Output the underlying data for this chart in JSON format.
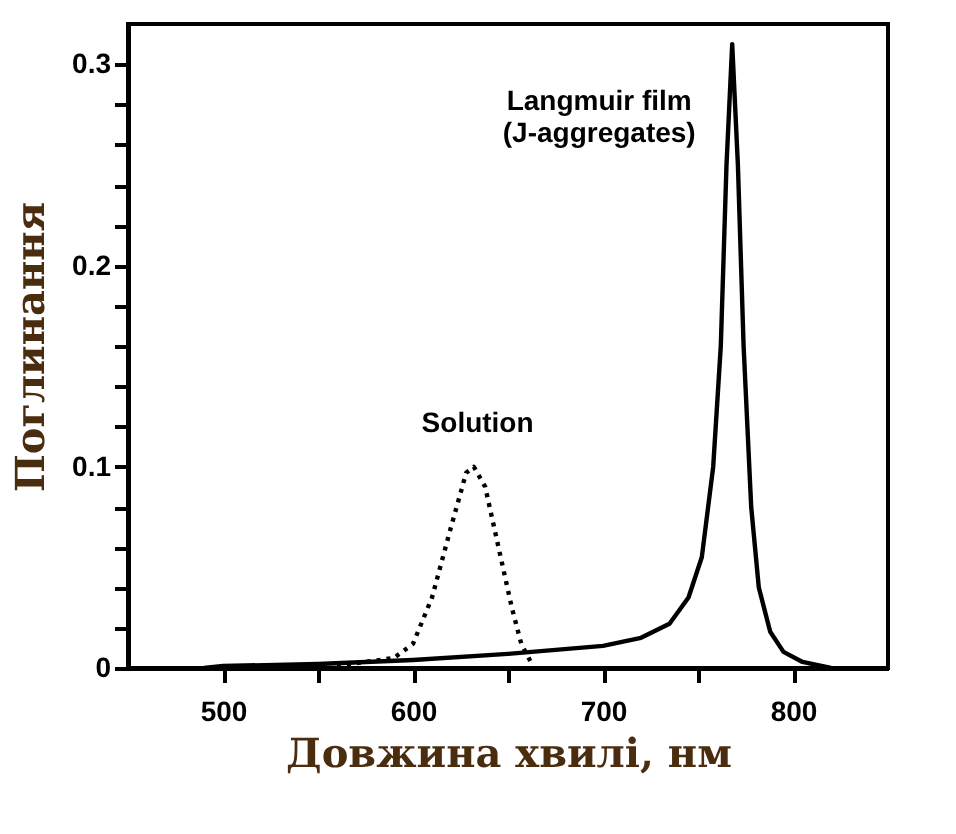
{
  "chart_data": {
    "type": "line",
    "xlabel": "Довжина хвилі, нм",
    "ylabel": "Поглинання",
    "xlim": [
      450,
      850
    ],
    "ylim": [
      0,
      0.32
    ],
    "xticks": [
      500,
      {
        "value": 550,
        "label": null
      },
      600,
      {
        "value": 650,
        "label": null
      },
      700,
      {
        "value": 750,
        "label": null
      },
      800
    ],
    "yticks": [
      0,
      {
        "value": 0.02,
        "label": null
      },
      {
        "value": 0.04,
        "label": null
      },
      {
        "value": 0.06,
        "label": null
      },
      {
        "value": 0.08,
        "label": null
      },
      0.1,
      {
        "value": 0.12,
        "label": null
      },
      {
        "value": 0.14,
        "label": null
      },
      {
        "value": 0.16,
        "label": null
      },
      {
        "value": 0.18,
        "label": null
      },
      0.2,
      {
        "value": 0.22,
        "label": null
      },
      {
        "value": 0.24,
        "label": null
      },
      {
        "value": 0.26,
        "label": null
      },
      {
        "value": 0.28,
        "label": null
      },
      0.3
    ],
    "grid": false,
    "marker": "none",
    "series": [
      {
        "color": "#000000",
        "line_style": "solid",
        "x": [
          490,
          500,
          550,
          600,
          650,
          700,
          720,
          735,
          745,
          752,
          758,
          762,
          765,
          768,
          771,
          774,
          778,
          782,
          788,
          795,
          805,
          820
        ],
        "values": [
          0,
          0.001,
          0.002,
          0.004,
          0.007,
          0.011,
          0.015,
          0.022,
          0.035,
          0.055,
          0.1,
          0.16,
          0.25,
          0.31,
          0.25,
          0.16,
          0.08,
          0.04,
          0.018,
          0.008,
          0.003,
          0
        ]
      },
      {
        "color": "#000000",
        "line_style": "dotted",
        "x": [
          560,
          590,
          600,
          610,
          620,
          628,
          632,
          638,
          645,
          652,
          657,
          662
        ],
        "values": [
          0.001,
          0.005,
          0.012,
          0.035,
          0.07,
          0.097,
          0.1,
          0.09,
          0.06,
          0.03,
          0.012,
          0.003
        ]
      }
    ],
    "annotations": [
      "Langmuir film\n(J-aggregates)",
      "Solution"
    ]
  }
}
